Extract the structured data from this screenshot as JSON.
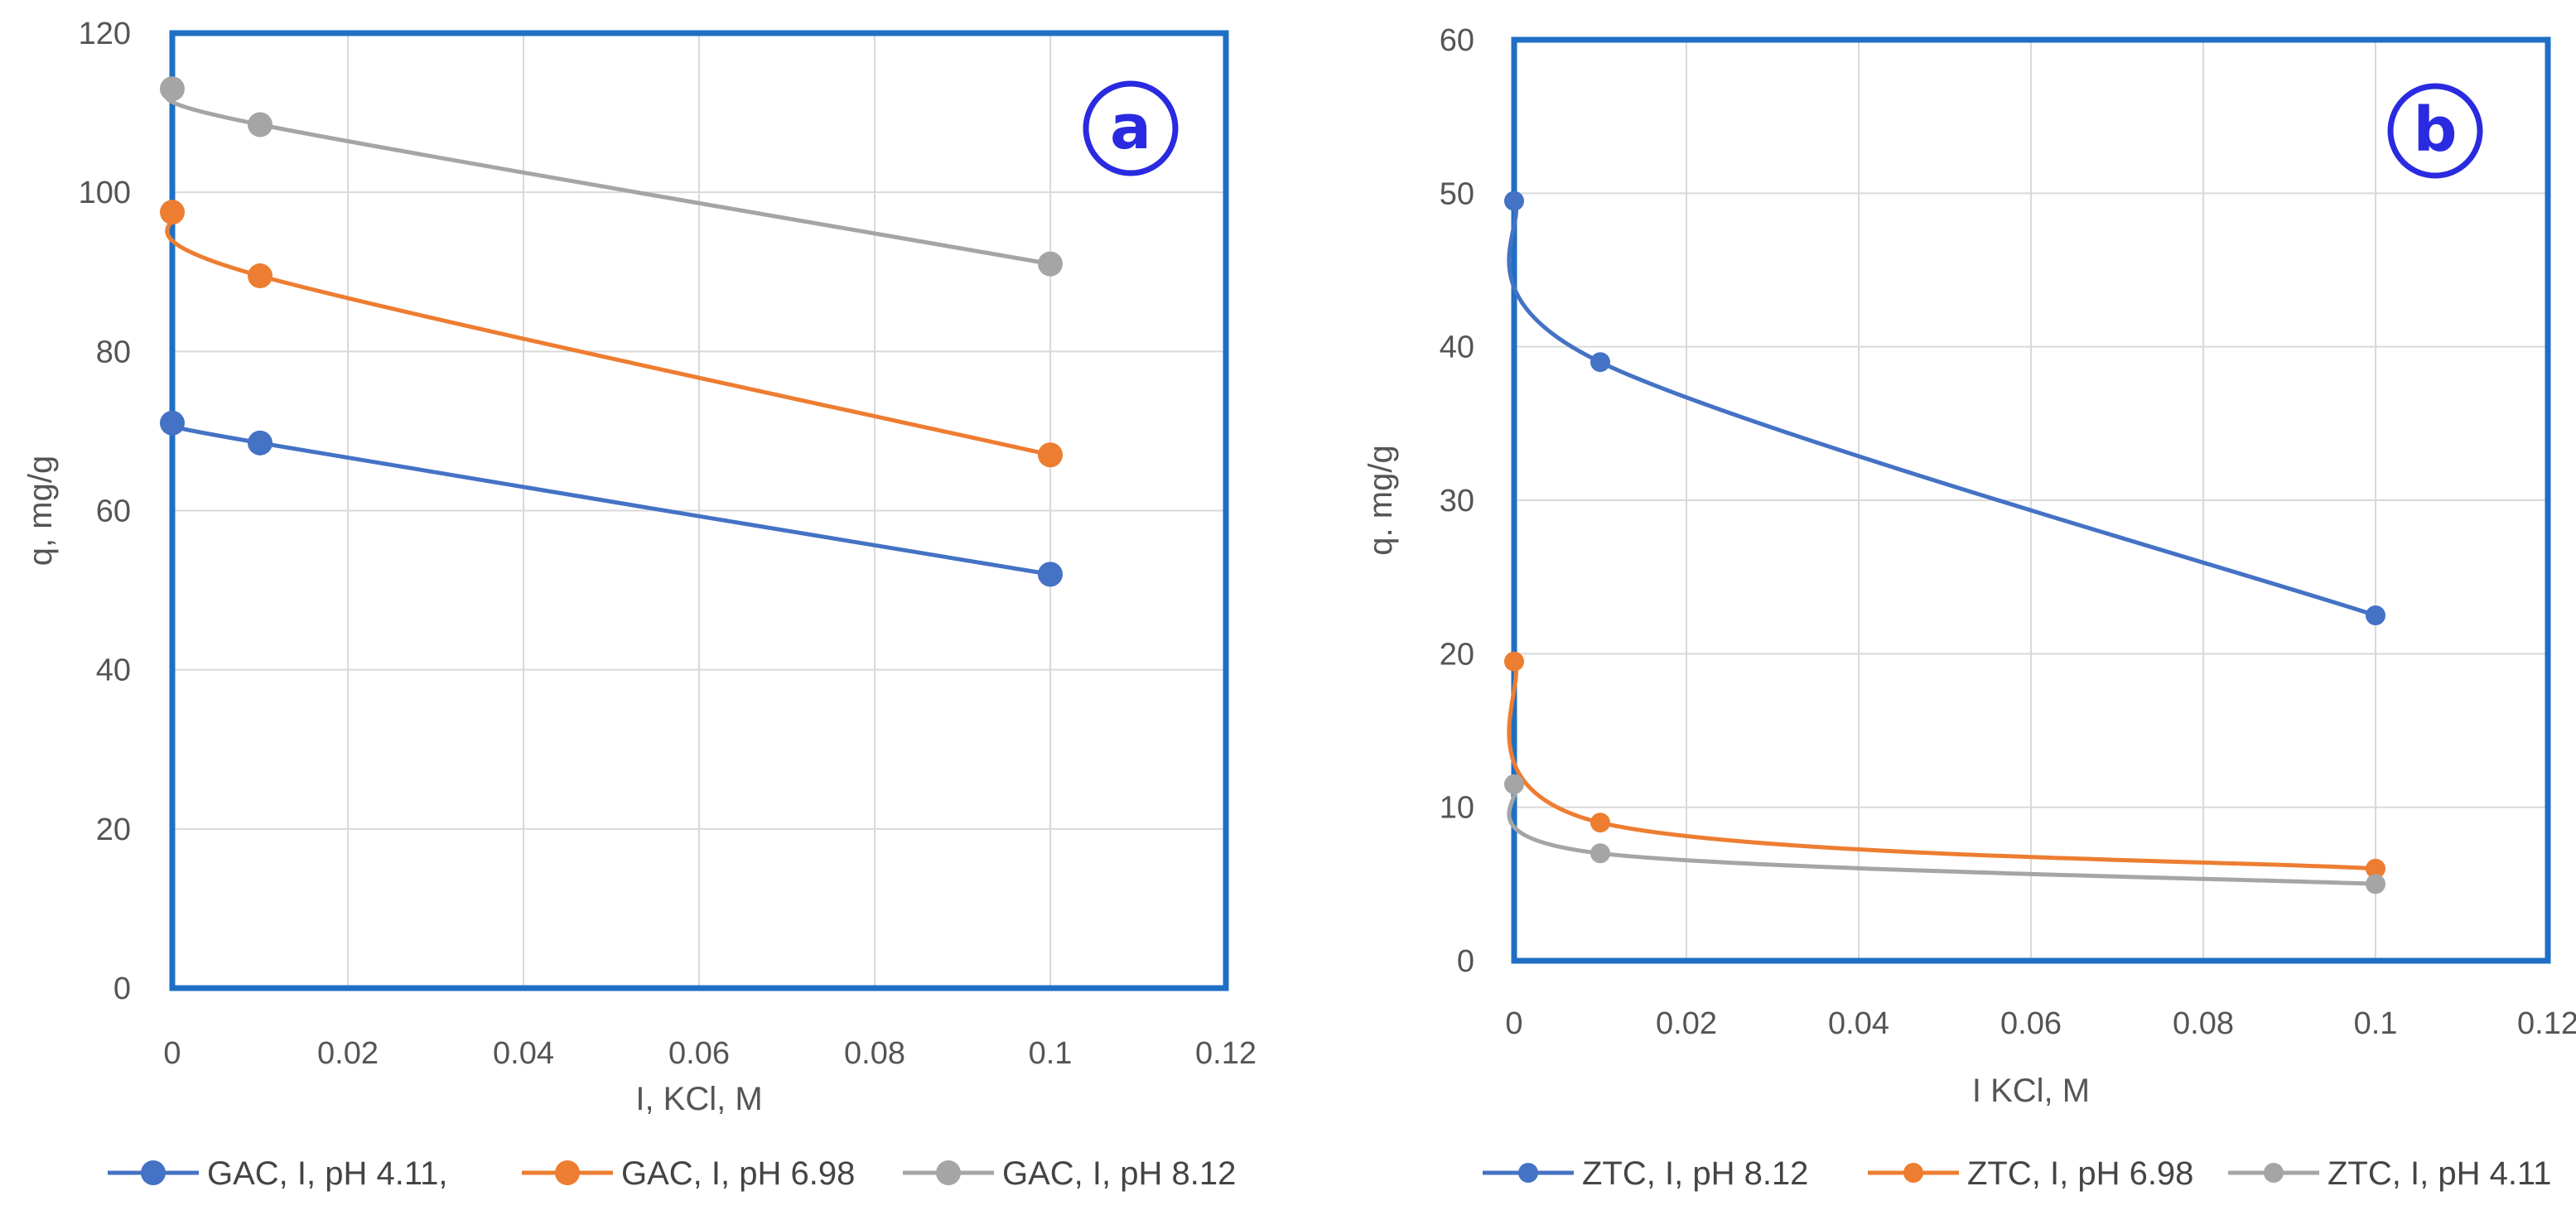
{
  "chart_data": [
    {
      "type": "line",
      "panel_label": "a",
      "xlabel": "I, KCl, M",
      "ylabel": "q, mg/g",
      "xlim": [
        0,
        0.12
      ],
      "ylim": [
        0,
        120
      ],
      "xticks": [
        "0",
        "0.02",
        "0.04",
        "0.06",
        "0.08",
        "0.1",
        "0.12"
      ],
      "yticks": [
        "0",
        "20",
        "40",
        "60",
        "80",
        "100",
        "120"
      ],
      "grid": true,
      "legend_position": "bottom",
      "frame_color": "#1f6fc4",
      "series": [
        {
          "name": "GAC, I, pH 4.11,",
          "color": "#4472c4",
          "x": [
            0,
            0.01,
            0.1
          ],
          "y": [
            71,
            68.5,
            52
          ]
        },
        {
          "name": "GAC, I, pH 6.98",
          "color": "#ed7d31",
          "x": [
            0,
            0.01,
            0.1
          ],
          "y": [
            97.5,
            89.5,
            67
          ]
        },
        {
          "name": "GAC, I, pH 8.12",
          "color": "#a5a5a5",
          "x": [
            0,
            0.01,
            0.1
          ],
          "y": [
            113,
            108.5,
            91
          ]
        }
      ]
    },
    {
      "type": "line",
      "panel_label": "b",
      "xlabel": "I KCl,  M",
      "ylabel": "q. mg/g",
      "xlim": [
        0,
        0.12
      ],
      "ylim": [
        0,
        60
      ],
      "xticks": [
        "0",
        "0.02",
        "0.04",
        "0.06",
        "0.08",
        "0.1",
        "0.12"
      ],
      "yticks": [
        "0",
        "10",
        "20",
        "30",
        "40",
        "50",
        "60"
      ],
      "grid": true,
      "legend_position": "bottom",
      "frame_color": "#1f6fc4",
      "series": [
        {
          "name": "ZTC, I, pH 8.12",
          "color": "#4472c4",
          "x": [
            0,
            0.01,
            0.1
          ],
          "y": [
            49.5,
            39,
            22.5
          ]
        },
        {
          "name": "ZTC, I, pH 6.98",
          "color": "#ed7d31",
          "x": [
            0,
            0.01,
            0.1
          ],
          "y": [
            19.5,
            9,
            6
          ]
        },
        {
          "name": "ZTC, I, pH 4.11",
          "color": "#a5a5a5",
          "x": [
            0,
            0.01,
            0.1
          ],
          "y": [
            11.5,
            7,
            5
          ]
        }
      ]
    }
  ]
}
